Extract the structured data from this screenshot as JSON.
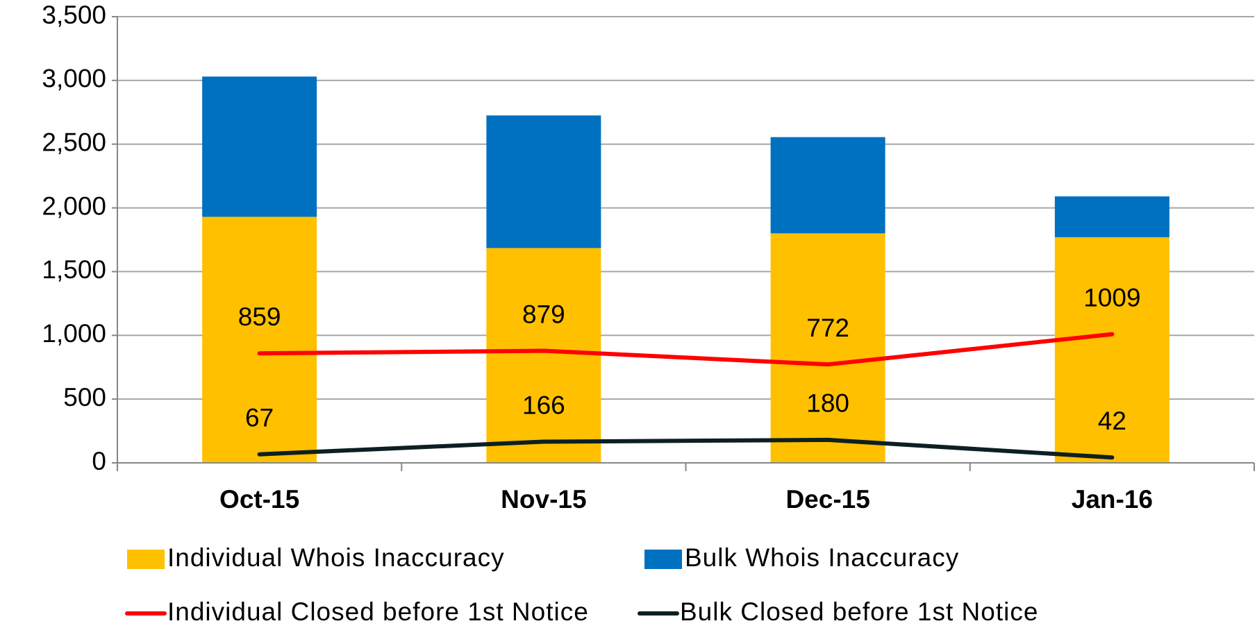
{
  "chart_data": {
    "type": "bar",
    "stacked": true,
    "categories": [
      "Oct-15",
      "Nov-15",
      "Dec-15",
      "Jan-16"
    ],
    "series": [
      {
        "name": "Individual Whois Inaccuracy",
        "type": "bar",
        "color": "#ffc000",
        "values": [
          1930,
          1685,
          1800,
          1770
        ]
      },
      {
        "name": "Bulk Whois Inaccuracy",
        "type": "bar",
        "color": "#0070c0",
        "values": [
          1100,
          1040,
          755,
          320
        ]
      },
      {
        "name": "Individual Closed before 1st Notice",
        "type": "line",
        "color": "#ff0000",
        "values": [
          859,
          879,
          772,
          1009
        ]
      },
      {
        "name": "Bulk Closed before 1st Notice",
        "type": "line",
        "color": "#0d1f22",
        "values": [
          67,
          166,
          180,
          42
        ]
      }
    ],
    "ylim": [
      0,
      3500
    ],
    "yticks": [
      0,
      500,
      {
        "value": 1000,
        "label": "1,000"
      },
      {
        "value": 1500,
        "label": "1,500"
      },
      {
        "value": 2000,
        "label": "2,000"
      },
      {
        "value": 2500,
        "label": "2,500"
      },
      {
        "value": 3000,
        "label": "3,000"
      },
      {
        "value": 3500,
        "label": "3,500"
      }
    ],
    "grid": true,
    "legend": "bottom"
  }
}
